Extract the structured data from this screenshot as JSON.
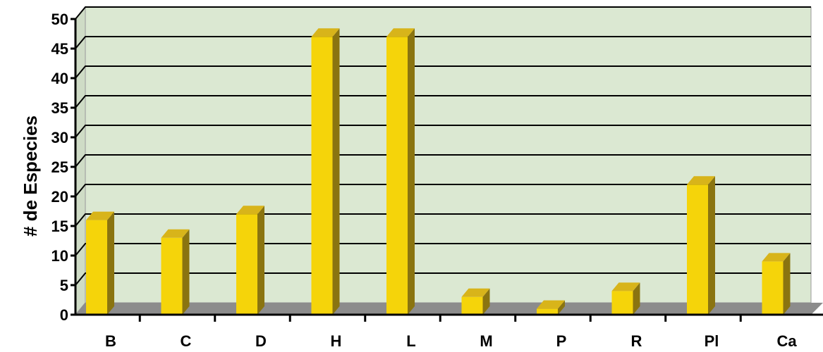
{
  "chart_data": {
    "type": "bar",
    "title": "",
    "xlabel": "",
    "ylabel": "# de Especies",
    "categories": [
      "B",
      "C",
      "D",
      "H",
      "L",
      "M",
      "P",
      "R",
      "Pl",
      "Ca"
    ],
    "values": [
      16,
      13,
      17,
      47,
      47,
      3,
      1,
      4,
      22,
      9
    ],
    "ylim": [
      0,
      50
    ],
    "yticks": [
      0,
      5,
      10,
      15,
      20,
      25,
      30,
      35,
      40,
      45,
      50
    ],
    "grid": true,
    "legend": "none",
    "colors": {
      "bar_front": "#f5d40a",
      "bar_top": "#d8b41a",
      "bar_side": "#8a7410",
      "wall": "#dbe8d2",
      "floor": "#8c8c8c",
      "gridline": "#000000"
    }
  }
}
